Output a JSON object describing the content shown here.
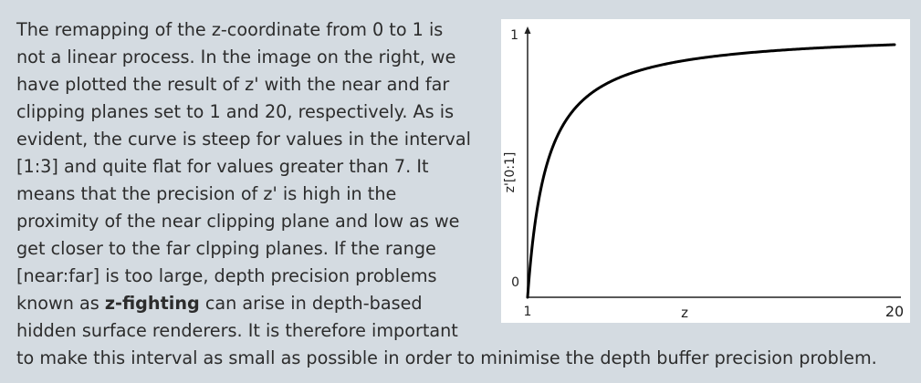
{
  "paragraph": {
    "lines": [
      "The remapping of the z-coordinate from 0 to 1 is",
      "not a linear process. In the image on the right, we",
      "have plotted the result of z' with the near and far",
      "clipping planes set to 1 and 20, respectively. As is",
      "evident, the curve is steep for values in the interval",
      "[1:3] and quite flat for values greater than 7. It",
      "means that the precision of z' is high in the",
      "proximity of the near clipping plane and low as we",
      "get closer to the far clpping planes. If the range",
      "[near:far] is too large, depth precision problems"
    ],
    "line11_before": "known as ",
    "line11_bold": "z-fighting",
    "line11_after": " can arise in depth-based",
    "line12": "hidden surface renderers. It is therefore important",
    "line13": "to make this interval as small as possible in order to minimise the depth buffer precision problem."
  },
  "chart_data": {
    "type": "line",
    "xlabel": "z",
    "ylabel": "z'[0:1]",
    "x_ticks": [
      "1",
      "20"
    ],
    "y_ticks": [
      "0",
      "1"
    ],
    "xlim": [
      1,
      20
    ],
    "ylim": [
      0,
      1
    ],
    "grid": false,
    "series": [
      {
        "x": [
          1,
          1.5,
          2,
          2.5,
          3,
          4,
          5,
          6,
          7,
          8,
          10,
          12,
          14,
          16,
          18,
          20
        ],
        "values": [
          0.0,
          0.35,
          0.526,
          0.632,
          0.702,
          0.789,
          0.842,
          0.877,
          0.902,
          0.921,
          0.947,
          0.965,
          0.977,
          0.987,
          0.994,
          1.0
        ]
      }
    ],
    "line_color": "#000000"
  }
}
